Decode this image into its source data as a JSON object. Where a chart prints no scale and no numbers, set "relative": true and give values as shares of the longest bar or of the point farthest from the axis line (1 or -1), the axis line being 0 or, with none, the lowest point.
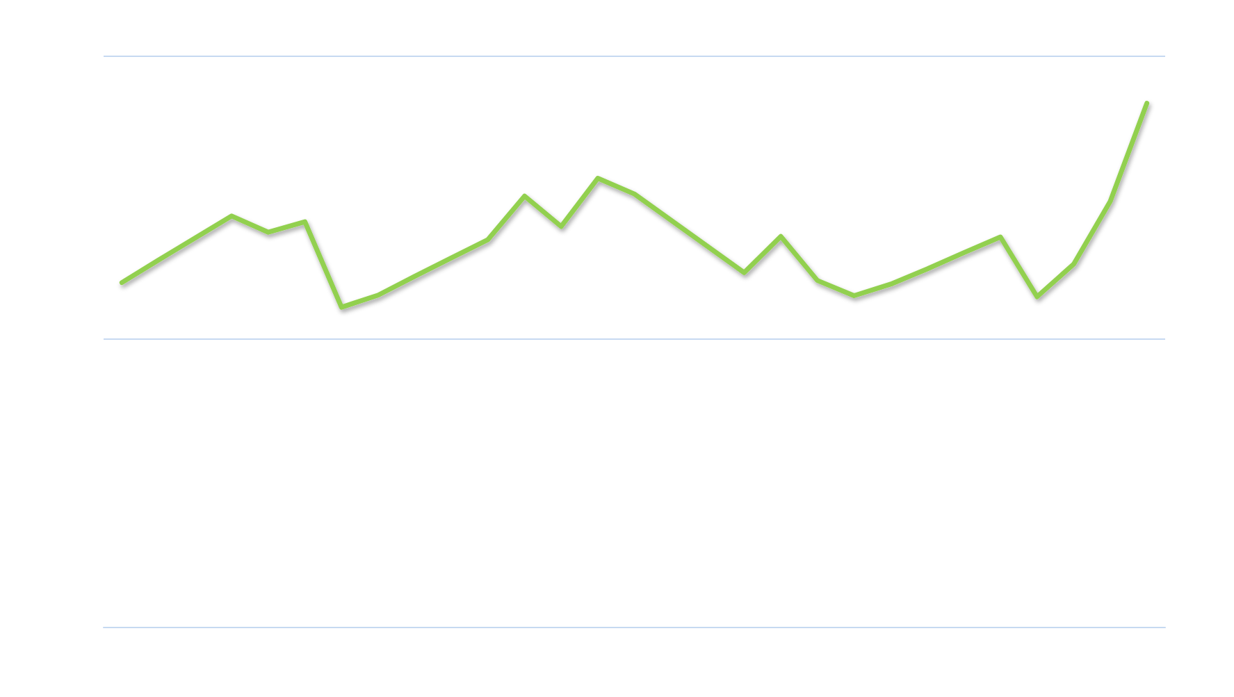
{
  "chart_data": {
    "type": "line",
    "relative": true,
    "marker": "none",
    "line_style": "solid",
    "ref_lines": [
      {
        "axis": "y",
        "value": 0.55,
        "color": "#c6d9f1"
      },
      {
        "axis": "y",
        "value": 1.093,
        "color": "#c6d9f1"
      }
    ],
    "categories": [
      null,
      null,
      null,
      null,
      null,
      null,
      null,
      null,
      null,
      null,
      null,
      null,
      null,
      null,
      null,
      null,
      null,
      null,
      null,
      null,
      null,
      null,
      null,
      null,
      null,
      null,
      null,
      null,
      null
    ],
    "series": [
      {
        "color": "#92d050",
        "values": [
          0.658,
          0.701,
          0.743,
          0.785,
          0.754,
          0.774,
          0.611,
          0.634,
          0.67,
          0.705,
          0.74,
          0.823,
          0.765,
          0.857,
          0.827,
          0.777,
          0.727,
          0.677,
          0.746,
          0.662,
          0.633,
          0.655,
          0.684,
          0.715,
          0.745,
          0.631,
          0.693,
          0.813,
          1
        ]
      }
    ]
  }
}
